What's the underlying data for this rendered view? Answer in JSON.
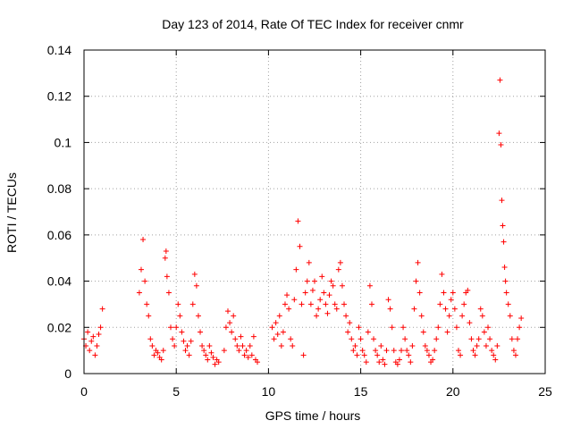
{
  "chart_data": {
    "type": "scatter",
    "title": "Day 123 of 2014, Rate Of TEC Index for receiver cnmr",
    "xlabel": "GPS time / hours",
    "ylabel": "ROTI / TECUs",
    "xlim": [
      0,
      25
    ],
    "ylim": [
      0,
      0.14
    ],
    "xticks": [
      0,
      5,
      10,
      15,
      20,
      25
    ],
    "xtick_labels": [
      "0",
      "5",
      "10",
      "15",
      "20",
      "25"
    ],
    "yticks": [
      0,
      0.02,
      0.04,
      0.06,
      0.08,
      0.1,
      0.12,
      0.14
    ],
    "ytick_labels": [
      "0",
      "0.02",
      "0.04",
      "0.06",
      "0.08",
      "0.1",
      "0.12",
      "0.14"
    ],
    "grid": true,
    "marker": "+",
    "color": "#ff0000",
    "series": [
      {
        "name": "ROTI",
        "points": [
          [
            0.0,
            0.015
          ],
          [
            0.1,
            0.012
          ],
          [
            0.2,
            0.018
          ],
          [
            0.3,
            0.01
          ],
          [
            0.4,
            0.014
          ],
          [
            0.5,
            0.016
          ],
          [
            0.6,
            0.008
          ],
          [
            0.7,
            0.012
          ],
          [
            0.8,
            0.017
          ],
          [
            0.9,
            0.02
          ],
          [
            1.0,
            0.028
          ],
          [
            3.0,
            0.035
          ],
          [
            3.1,
            0.045
          ],
          [
            3.2,
            0.058
          ],
          [
            3.3,
            0.04
          ],
          [
            3.4,
            0.03
          ],
          [
            3.5,
            0.025
          ],
          [
            3.6,
            0.015
          ],
          [
            3.7,
            0.012
          ],
          [
            3.8,
            0.008
          ],
          [
            3.9,
            0.01
          ],
          [
            4.0,
            0.009
          ],
          [
            4.1,
            0.007
          ],
          [
            4.2,
            0.006
          ],
          [
            4.3,
            0.01
          ],
          [
            4.4,
            0.05
          ],
          [
            4.45,
            0.053
          ],
          [
            4.5,
            0.042
          ],
          [
            4.6,
            0.035
          ],
          [
            4.7,
            0.02
          ],
          [
            4.8,
            0.015
          ],
          [
            4.9,
            0.012
          ],
          [
            5.0,
            0.02
          ],
          [
            5.1,
            0.03
          ],
          [
            5.2,
            0.025
          ],
          [
            5.3,
            0.018
          ],
          [
            5.4,
            0.014
          ],
          [
            5.5,
            0.01
          ],
          [
            5.6,
            0.012
          ],
          [
            5.7,
            0.008
          ],
          [
            5.8,
            0.014
          ],
          [
            5.9,
            0.03
          ],
          [
            6.0,
            0.043
          ],
          [
            6.1,
            0.038
          ],
          [
            6.2,
            0.025
          ],
          [
            6.3,
            0.018
          ],
          [
            6.4,
            0.012
          ],
          [
            6.5,
            0.01
          ],
          [
            6.6,
            0.008
          ],
          [
            6.7,
            0.006
          ],
          [
            6.8,
            0.012
          ],
          [
            6.9,
            0.009
          ],
          [
            7.0,
            0.007
          ],
          [
            7.1,
            0.004
          ],
          [
            7.2,
            0.006
          ],
          [
            7.3,
            0.005
          ],
          [
            7.6,
            0.01
          ],
          [
            7.7,
            0.02
          ],
          [
            7.8,
            0.027
          ],
          [
            7.9,
            0.022
          ],
          [
            8.0,
            0.018
          ],
          [
            8.1,
            0.025
          ],
          [
            8.2,
            0.015
          ],
          [
            8.3,
            0.012
          ],
          [
            8.4,
            0.01
          ],
          [
            8.5,
            0.016
          ],
          [
            8.6,
            0.012
          ],
          [
            8.7,
            0.008
          ],
          [
            8.8,
            0.01
          ],
          [
            8.9,
            0.007
          ],
          [
            9.0,
            0.012
          ],
          [
            9.1,
            0.008
          ],
          [
            9.2,
            0.016
          ],
          [
            9.3,
            0.006
          ],
          [
            9.4,
            0.005
          ],
          [
            10.2,
            0.02
          ],
          [
            10.3,
            0.015
          ],
          [
            10.4,
            0.022
          ],
          [
            10.5,
            0.017
          ],
          [
            10.6,
            0.025
          ],
          [
            10.7,
            0.012
          ],
          [
            10.8,
            0.018
          ],
          [
            10.9,
            0.03
          ],
          [
            11.0,
            0.034
          ],
          [
            11.1,
            0.028
          ],
          [
            11.2,
            0.015
          ],
          [
            11.3,
            0.012
          ],
          [
            11.4,
            0.032
          ],
          [
            11.5,
            0.045
          ],
          [
            11.6,
            0.066
          ],
          [
            11.7,
            0.055
          ],
          [
            11.8,
            0.03
          ],
          [
            11.9,
            0.008
          ],
          [
            12.0,
            0.035
          ],
          [
            12.1,
            0.04
          ],
          [
            12.2,
            0.048
          ],
          [
            12.3,
            0.03
          ],
          [
            12.4,
            0.036
          ],
          [
            12.5,
            0.04
          ],
          [
            12.6,
            0.025
          ],
          [
            12.7,
            0.028
          ],
          [
            12.8,
            0.032
          ],
          [
            12.9,
            0.042
          ],
          [
            13.0,
            0.035
          ],
          [
            13.1,
            0.03
          ],
          [
            13.2,
            0.026
          ],
          [
            13.3,
            0.034
          ],
          [
            13.4,
            0.04
          ],
          [
            13.5,
            0.038
          ],
          [
            13.6,
            0.03
          ],
          [
            13.7,
            0.028
          ],
          [
            13.8,
            0.045
          ],
          [
            13.9,
            0.048
          ],
          [
            14.0,
            0.038
          ],
          [
            14.1,
            0.03
          ],
          [
            14.2,
            0.025
          ],
          [
            14.3,
            0.018
          ],
          [
            14.4,
            0.022
          ],
          [
            14.5,
            0.015
          ],
          [
            14.6,
            0.01
          ],
          [
            14.7,
            0.012
          ],
          [
            14.8,
            0.008
          ],
          [
            14.9,
            0.02
          ],
          [
            15.0,
            0.015
          ],
          [
            15.1,
            0.01
          ],
          [
            15.2,
            0.008
          ],
          [
            15.3,
            0.005
          ],
          [
            15.4,
            0.018
          ],
          [
            15.5,
            0.038
          ],
          [
            15.6,
            0.03
          ],
          [
            15.7,
            0.015
          ],
          [
            15.8,
            0.01
          ],
          [
            15.9,
            0.008
          ],
          [
            16.0,
            0.005
          ],
          [
            16.1,
            0.012
          ],
          [
            16.2,
            0.006
          ],
          [
            16.3,
            0.004
          ],
          [
            16.4,
            0.01
          ],
          [
            16.5,
            0.032
          ],
          [
            16.6,
            0.028
          ],
          [
            16.7,
            0.02
          ],
          [
            16.8,
            0.01
          ],
          [
            16.9,
            0.005
          ],
          [
            17.0,
            0.004
          ],
          [
            17.1,
            0.006
          ],
          [
            17.2,
            0.01
          ],
          [
            17.3,
            0.02
          ],
          [
            17.4,
            0.015
          ],
          [
            17.5,
            0.01
          ],
          [
            17.6,
            0.008
          ],
          [
            17.7,
            0.005
          ],
          [
            17.8,
            0.012
          ],
          [
            17.9,
            0.028
          ],
          [
            18.0,
            0.04
          ],
          [
            18.1,
            0.048
          ],
          [
            18.2,
            0.035
          ],
          [
            18.3,
            0.025
          ],
          [
            18.4,
            0.018
          ],
          [
            18.5,
            0.012
          ],
          [
            18.6,
            0.01
          ],
          [
            18.7,
            0.008
          ],
          [
            18.8,
            0.005
          ],
          [
            18.9,
            0.006
          ],
          [
            19.0,
            0.01
          ],
          [
            19.1,
            0.015
          ],
          [
            19.2,
            0.02
          ],
          [
            19.3,
            0.03
          ],
          [
            19.4,
            0.043
          ],
          [
            19.5,
            0.035
          ],
          [
            19.6,
            0.028
          ],
          [
            19.7,
            0.018
          ],
          [
            19.8,
            0.025
          ],
          [
            19.9,
            0.032
          ],
          [
            20.0,
            0.035
          ],
          [
            20.1,
            0.028
          ],
          [
            20.2,
            0.02
          ],
          [
            20.3,
            0.01
          ],
          [
            20.4,
            0.008
          ],
          [
            20.5,
            0.025
          ],
          [
            20.6,
            0.03
          ],
          [
            20.7,
            0.035
          ],
          [
            20.8,
            0.036
          ],
          [
            20.9,
            0.022
          ],
          [
            21.0,
            0.015
          ],
          [
            21.1,
            0.01
          ],
          [
            21.2,
            0.008
          ],
          [
            21.3,
            0.012
          ],
          [
            21.4,
            0.015
          ],
          [
            21.5,
            0.028
          ],
          [
            21.6,
            0.025
          ],
          [
            21.7,
            0.018
          ],
          [
            21.8,
            0.012
          ],
          [
            21.9,
            0.02
          ],
          [
            22.0,
            0.015
          ],
          [
            22.1,
            0.01
          ],
          [
            22.2,
            0.008
          ],
          [
            22.3,
            0.006
          ],
          [
            22.4,
            0.012
          ],
          [
            22.5,
            0.104
          ],
          [
            22.55,
            0.127
          ],
          [
            22.6,
            0.099
          ],
          [
            22.65,
            0.075
          ],
          [
            22.7,
            0.064
          ],
          [
            22.75,
            0.057
          ],
          [
            22.8,
            0.046
          ],
          [
            22.85,
            0.04
          ],
          [
            22.9,
            0.035
          ],
          [
            23.0,
            0.03
          ],
          [
            23.1,
            0.025
          ],
          [
            23.2,
            0.015
          ],
          [
            23.3,
            0.01
          ],
          [
            23.4,
            0.008
          ],
          [
            23.5,
            0.015
          ],
          [
            23.6,
            0.02
          ],
          [
            23.7,
            0.024
          ]
        ]
      }
    ]
  }
}
